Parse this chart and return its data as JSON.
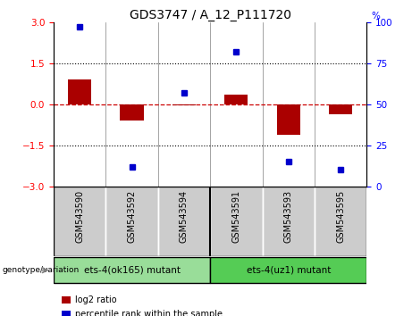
{
  "title": "GDS3747 / A_12_P111720",
  "samples": [
    "GSM543590",
    "GSM543592",
    "GSM543594",
    "GSM543591",
    "GSM543593",
    "GSM543595"
  ],
  "log2_ratios": [
    0.9,
    -0.6,
    -0.03,
    0.35,
    -1.1,
    -0.35
  ],
  "percentile_ranks": [
    97,
    12,
    57,
    82,
    15,
    10
  ],
  "bar_color": "#aa0000",
  "dot_color": "#0000cc",
  "groups": [
    {
      "label": "ets-4(ok165) mutant",
      "indices": [
        0,
        1,
        2
      ],
      "color": "#99dd99"
    },
    {
      "label": "ets-4(uz1) mutant",
      "indices": [
        3,
        4,
        5
      ],
      "color": "#55cc55"
    }
  ],
  "ylim_left": [
    -3,
    3
  ],
  "ylim_right": [
    0,
    100
  ],
  "yticks_left": [
    -3,
    -1.5,
    0,
    1.5,
    3
  ],
  "yticks_right": [
    0,
    25,
    50,
    75,
    100
  ],
  "hlines": [
    1.5,
    -1.5
  ],
  "zero_line_color": "#cc0000",
  "hline_color": "#000000",
  "background_plot": "#ffffff",
  "background_sample": "#cccccc",
  "legend_log2": "log2 ratio",
  "legend_percentile": "percentile rank within the sample",
  "bar_width": 0.45
}
